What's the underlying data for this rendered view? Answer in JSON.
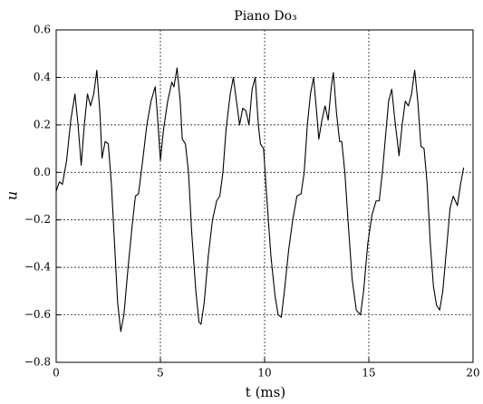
{
  "chart_data": {
    "type": "line",
    "title": "Piano Do₃",
    "x_label": "t (ms)",
    "y_label": "u",
    "x": [
      0,
      0.15,
      0.3,
      0.5,
      0.7,
      0.9,
      1.05,
      1.2,
      1.35,
      1.5,
      1.65,
      1.8,
      1.95,
      2.1,
      2.2,
      2.35,
      2.5,
      2.65,
      2.8,
      2.95,
      3.1,
      3.25,
      3.45,
      3.65,
      3.8,
      3.95,
      4.15,
      4.35,
      4.55,
      4.75,
      4.85,
      5.0,
      5.15,
      5.35,
      5.55,
      5.65,
      5.8,
      5.95,
      6.05,
      6.2,
      6.35,
      6.5,
      6.7,
      6.85,
      6.95,
      7.1,
      7.3,
      7.5,
      7.7,
      7.85,
      8.0,
      8.15,
      8.35,
      8.5,
      8.65,
      8.8,
      8.95,
      9.1,
      9.25,
      9.4,
      9.55,
      9.7,
      9.8,
      9.95,
      10.1,
      10.3,
      10.5,
      10.65,
      10.8,
      10.95,
      11.15,
      11.35,
      11.55,
      11.75,
      11.9,
      12.05,
      12.2,
      12.35,
      12.5,
      12.6,
      12.75,
      12.9,
      13.05,
      13.2,
      13.3,
      13.45,
      13.6,
      13.7,
      13.85,
      14.0,
      14.2,
      14.4,
      14.6,
      14.75,
      14.95,
      15.15,
      15.35,
      15.5,
      15.65,
      15.8,
      15.95,
      16.1,
      16.25,
      16.45,
      16.6,
      16.75,
      16.9,
      17.05,
      17.2,
      17.35,
      17.5,
      17.65,
      17.8,
      17.95,
      18.1,
      18.25,
      18.4,
      18.55,
      18.75,
      18.9,
      19.05,
      19.25,
      19.4,
      19.55
    ],
    "series": [
      {
        "color": "#000000",
        "values": [
          -0.08,
          -0.04,
          -0.05,
          0.05,
          0.22,
          0.33,
          0.2,
          0.03,
          0.2,
          0.33,
          0.28,
          0.33,
          0.43,
          0.25,
          0.06,
          0.13,
          0.12,
          -0.05,
          -0.3,
          -0.55,
          -0.67,
          -0.6,
          -0.4,
          -0.22,
          -0.1,
          -0.09,
          0.05,
          0.2,
          0.3,
          0.36,
          0.25,
          0.05,
          0.18,
          0.3,
          0.38,
          0.36,
          0.44,
          0.3,
          0.14,
          0.12,
          0.0,
          -0.25,
          -0.5,
          -0.63,
          -0.64,
          -0.55,
          -0.35,
          -0.2,
          -0.12,
          -0.1,
          0.0,
          0.18,
          0.33,
          0.4,
          0.3,
          0.2,
          0.27,
          0.26,
          0.2,
          0.35,
          0.4,
          0.2,
          0.12,
          0.1,
          -0.1,
          -0.35,
          -0.52,
          -0.6,
          -0.61,
          -0.5,
          -0.33,
          -0.2,
          -0.1,
          -0.09,
          0.0,
          0.2,
          0.33,
          0.4,
          0.25,
          0.14,
          0.22,
          0.28,
          0.22,
          0.36,
          0.42,
          0.25,
          0.13,
          0.13,
          0.0,
          -0.2,
          -0.45,
          -0.58,
          -0.6,
          -0.5,
          -0.3,
          -0.18,
          -0.12,
          -0.12,
          0.0,
          0.15,
          0.3,
          0.35,
          0.22,
          0.07,
          0.2,
          0.3,
          0.28,
          0.33,
          0.43,
          0.3,
          0.11,
          0.1,
          -0.05,
          -0.3,
          -0.48,
          -0.56,
          -0.58,
          -0.5,
          -0.3,
          -0.15,
          -0.1,
          -0.14,
          -0.05,
          0.02
        ]
      }
    ],
    "xlim": [
      0,
      20
    ],
    "xticks": [
      0,
      5,
      10,
      15,
      20
    ],
    "ylim": [
      -0.8,
      0.6
    ],
    "yticks": [
      {
        "value": -0.8,
        "label": "−0.8"
      },
      {
        "value": -0.6,
        "label": "−0.6"
      },
      {
        "value": -0.4,
        "label": "−0.4"
      },
      {
        "value": -0.2,
        "label": "−0.2"
      },
      {
        "value": 0,
        "label": "0.0"
      },
      0.2,
      0.4,
      0.6
    ],
    "grid": true
  }
}
